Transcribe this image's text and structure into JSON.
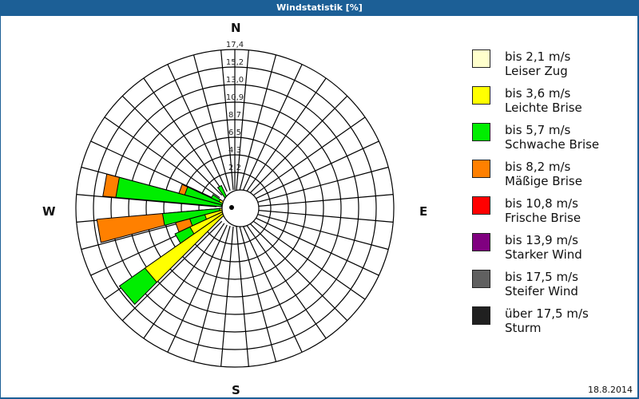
{
  "window": {
    "title": "Windstatistik [%]"
  },
  "footer": {
    "date": "18.8.2014"
  },
  "cardinals": {
    "n": "N",
    "e": "E",
    "s": "S",
    "w": "W"
  },
  "legend": [
    {
      "line1": "bis 2,1 m/s",
      "line2": "Leiser Zug",
      "color": "#ffffcc"
    },
    {
      "line1": "bis 3,6 m/s",
      "line2": "Leichte Brise",
      "color": "#ffff00"
    },
    {
      "line1": "bis 5,7 m/s",
      "line2": "Schwache Brise",
      "color": "#00ee00"
    },
    {
      "line1": "bis 8,2 m/s",
      "line2": "Mäßige Brise",
      "color": "#ff8000"
    },
    {
      "line1": "bis 10,8 m/s",
      "line2": "Frische Brise",
      "color": "#ff0000"
    },
    {
      "line1": "bis 13,9 m/s",
      "line2": "Starker Wind",
      "color": "#800080"
    },
    {
      "line1": "bis 17,5 m/s",
      "line2": "Steifer Wind",
      "color": "#606060"
    },
    {
      "line1": "über 17,5 m/s",
      "line2": "Sturm",
      "color": "#202020"
    }
  ],
  "chart_data": {
    "type": "polar-stacked-bar (wind rose)",
    "title": "Windstatistik [%]",
    "unit": "%",
    "ring_labels": [
      "2,2",
      "4,3",
      "6,5",
      "8,7",
      "10,9",
      "13,0",
      "15,2",
      "17,4"
    ],
    "rmax": 17.4,
    "sectors": 36,
    "sector_width_deg": 10,
    "series_names": [
      "bis 2,1 m/s",
      "bis 3,6 m/s",
      "bis 5,7 m/s",
      "bis 8,2 m/s",
      "bis 10,8 m/s",
      "bis 13,9 m/s",
      "bis 17,5 m/s",
      "über 17,5 m/s"
    ],
    "petals": [
      {
        "direction_deg": 230,
        "cumulative": [
          0.0,
          12.2,
          15.8
        ]
      },
      {
        "direction_deg": 240,
        "cumulative": [
          0.0,
          5.3,
          7.2
        ]
      },
      {
        "direction_deg": 250,
        "cumulative": [
          0.0,
          3.2,
          5.0,
          6.7
        ]
      },
      {
        "direction_deg": 260,
        "cumulative": [
          0.0,
          1.4,
          8.0,
          15.6
        ]
      },
      {
        "direction_deg": 280,
        "cumulative": [
          0.0,
          1.2,
          13.4,
          14.9
        ]
      },
      {
        "direction_deg": 290,
        "cumulative": [
          0.0,
          1.0,
          5.6,
          6.3
        ]
      },
      {
        "direction_deg": 300,
        "cumulative": [
          0.0,
          1.6,
          2.6
        ]
      },
      {
        "direction_deg": 330,
        "cumulative": [
          0.0,
          0.3,
          2.8
        ]
      }
    ]
  }
}
